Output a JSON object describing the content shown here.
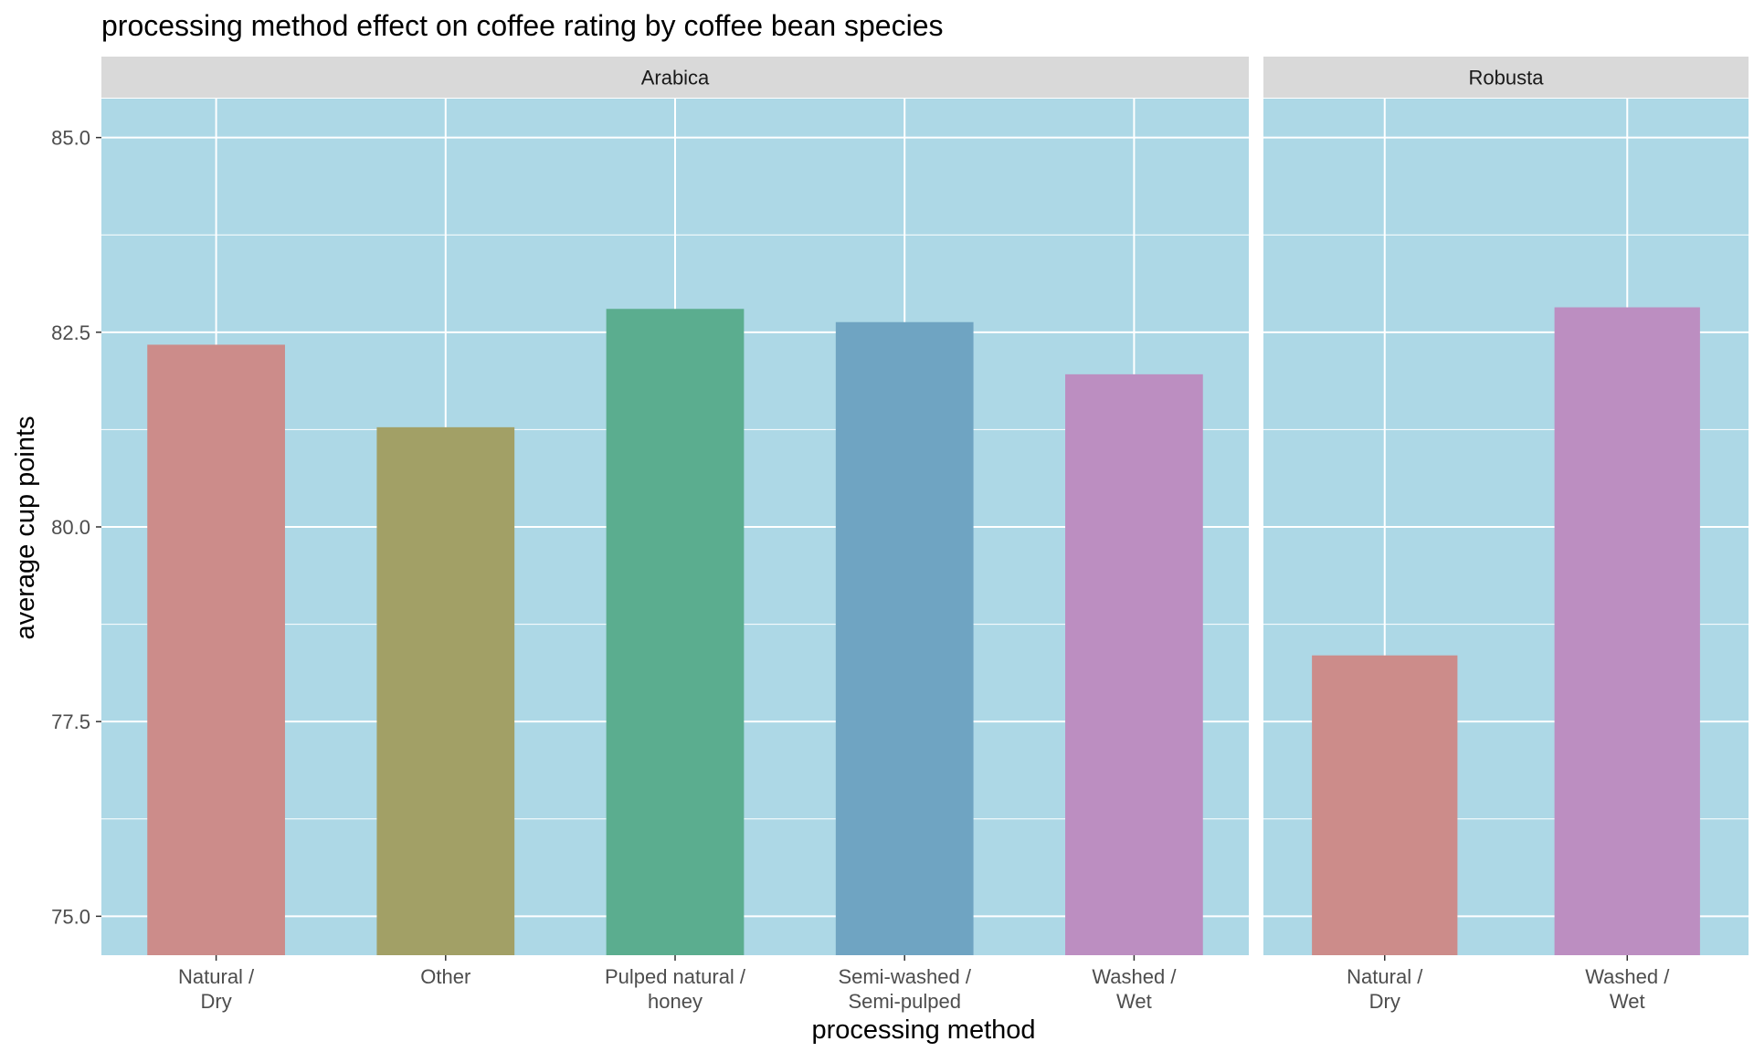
{
  "chart_data": {
    "type": "bar",
    "title": "processing method effect on coffee rating by coffee bean species",
    "xlabel": "processing method",
    "ylabel": "average cup points",
    "ylim": [
      74.5,
      85.5
    ],
    "yticks": [
      75.0,
      77.5,
      80.0,
      82.5,
      85.0
    ],
    "ytick_labels": [
      "75.0",
      "77.5",
      "80.0",
      "82.5",
      "85.0"
    ],
    "grid": true,
    "legend": "none",
    "panel_background": "#add8e6",
    "strip_background": "#d9d9d9",
    "facets": [
      {
        "name": "Arabica",
        "categories": [
          "Natural / Dry",
          "Other",
          "Pulped natural / honey",
          "Semi-washed / Semi-pulped",
          "Washed / Wet"
        ],
        "category_lines": [
          [
            "Natural /",
            "Dry"
          ],
          [
            "Other"
          ],
          [
            "Pulped natural /",
            "honey"
          ],
          [
            "Semi-washed /",
            "Semi-pulped"
          ],
          [
            "Washed /",
            "Wet"
          ]
        ],
        "values": [
          82.34,
          81.28,
          82.8,
          82.63,
          81.96
        ],
        "colors": [
          "#cc8c8a",
          "#a2a066",
          "#5bad8f",
          "#6fa4c2",
          "#bc8ec1"
        ]
      },
      {
        "name": "Robusta",
        "categories": [
          "Natural / Dry",
          "Washed / Wet"
        ],
        "category_lines": [
          [
            "Natural /",
            "Dry"
          ],
          [
            "Washed /",
            "Wet"
          ]
        ],
        "values": [
          78.35,
          82.82
        ],
        "colors": [
          "#cc8c8a",
          "#bc8ec1"
        ]
      }
    ]
  }
}
